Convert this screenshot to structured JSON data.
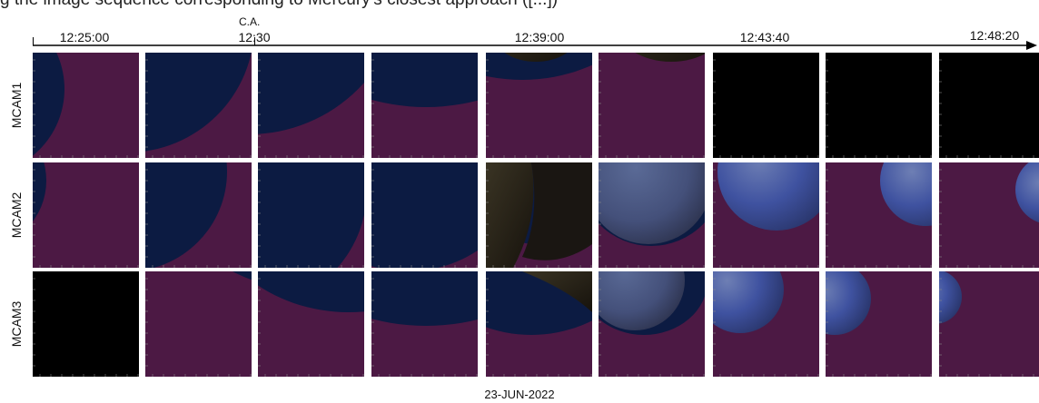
{
  "caption_fragment": "g the image sequence corresponding to Mercury's closest approach ([...])",
  "timeline": {
    "labels": [
      "12:25:00",
      "12:30",
      "12:39:00",
      "12:43:40",
      "12:48:20"
    ],
    "closest_approach_label": "C.A."
  },
  "rows": [
    {
      "label": "MCAM1"
    },
    {
      "label": "MCAM2"
    },
    {
      "label": "MCAM3"
    }
  ],
  "date": "23-JUN-2022",
  "colors": {
    "background_magenta": "#4c1944",
    "shadow_navy": "#0c1b42",
    "black": "#000000",
    "planet_shadow": "#262016",
    "planet_lit": "#4e5670",
    "planet_blue": "#3e5196"
  }
}
